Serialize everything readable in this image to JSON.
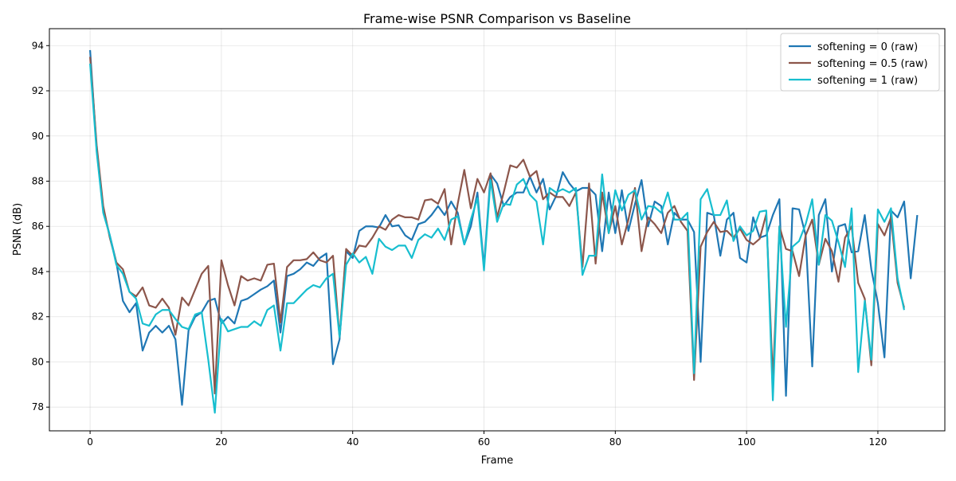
{
  "chart_data": {
    "type": "line",
    "title": "Frame-wise PSNR Comparison vs Baseline",
    "xlabel": "Frame",
    "ylabel": "PSNR (dB)",
    "xlim": [
      -6.2,
      130.2
    ],
    "ylim": [
      76.95,
      94.75
    ],
    "xticks": [
      0,
      20,
      40,
      60,
      80,
      100,
      120
    ],
    "yticks": [
      78,
      80,
      82,
      84,
      86,
      88,
      90,
      92,
      94
    ],
    "grid": true,
    "legend": "top-right",
    "series": [
      {
        "name": "softening = 0 (raw)",
        "color": "#1f77b4",
        "values": [
          93.8,
          89.4,
          86.7,
          85.6,
          84.4,
          82.7,
          82.2,
          82.6,
          80.5,
          81.3,
          81.6,
          81.3,
          81.6,
          81.0,
          78.1,
          81.4,
          82.0,
          82.2,
          82.7,
          82.8,
          81.7,
          82.0,
          81.7,
          82.7,
          82.8,
          83.0,
          83.2,
          83.35,
          83.6,
          81.3,
          83.8,
          83.9,
          84.1,
          84.4,
          84.25,
          84.6,
          84.8,
          79.9,
          81.0,
          84.9,
          84.6,
          85.8,
          86.0,
          86.0,
          85.95,
          86.5,
          86.0,
          86.05,
          85.6,
          85.4,
          86.1,
          86.2,
          86.5,
          86.9,
          86.5,
          87.1,
          86.6,
          85.2,
          86.0,
          87.5,
          84.2,
          88.3,
          87.9,
          86.9,
          87.3,
          87.5,
          87.5,
          88.2,
          87.5,
          88.1,
          86.75,
          87.35,
          88.4,
          87.9,
          87.55,
          87.7,
          87.7,
          87.4,
          84.9,
          87.5,
          85.7,
          87.6,
          85.8,
          87.0,
          88.05,
          86.0,
          87.1,
          86.9,
          85.2,
          86.6,
          86.3,
          86.3,
          85.75,
          80.0,
          86.6,
          86.5,
          84.7,
          86.3,
          86.6,
          84.6,
          84.4,
          86.4,
          85.5,
          85.6,
          86.5,
          87.2,
          78.5,
          86.8,
          86.75,
          85.6,
          79.8,
          86.5,
          87.2,
          84.0,
          86.0,
          86.1,
          84.85,
          84.9,
          86.5,
          84.1,
          82.6,
          80.2,
          86.7,
          86.4,
          87.1,
          83.7,
          86.5
        ]
      },
      {
        "name": "softening = 0.5 (raw)",
        "color": "#8c564b",
        "values": [
          93.5,
          89.6,
          86.9,
          85.5,
          84.4,
          84.1,
          83.1,
          82.9,
          83.3,
          82.5,
          82.4,
          82.8,
          82.4,
          81.2,
          82.85,
          82.5,
          83.2,
          83.9,
          84.25,
          78.6,
          84.5,
          83.4,
          82.5,
          83.8,
          83.6,
          83.7,
          83.6,
          84.3,
          84.35,
          81.75,
          84.2,
          84.5,
          84.5,
          84.55,
          84.85,
          84.5,
          84.4,
          84.7,
          81.1,
          85.0,
          84.7,
          85.15,
          85.1,
          85.5,
          86.0,
          85.85,
          86.3,
          86.5,
          86.4,
          86.4,
          86.3,
          87.15,
          87.2,
          87.0,
          87.65,
          85.2,
          87.0,
          88.5,
          86.8,
          88.1,
          87.5,
          88.35,
          86.4,
          87.5,
          88.7,
          88.6,
          88.95,
          88.2,
          88.45,
          87.2,
          87.5,
          87.3,
          87.3,
          86.9,
          87.5,
          84.2,
          87.9,
          84.35,
          87.5,
          85.7,
          86.9,
          85.2,
          86.3,
          87.7,
          84.9,
          86.4,
          86.1,
          85.7,
          86.6,
          86.9,
          86.2,
          85.8,
          79.2,
          85.1,
          85.75,
          86.2,
          85.75,
          85.8,
          85.5,
          85.9,
          85.4,
          85.2,
          85.45,
          86.55,
          79.2,
          86.0,
          85.0,
          84.9,
          83.8,
          85.6,
          86.3,
          84.3,
          85.45,
          84.9,
          83.55,
          85.5,
          86.0,
          83.5,
          82.8,
          79.85,
          86.1,
          85.6,
          86.4,
          83.5,
          82.4
        ]
      },
      {
        "name": "softening = 1 (raw)",
        "color": "#17becf",
        "values": [
          93.2,
          89.3,
          86.6,
          85.6,
          84.3,
          83.9,
          83.1,
          82.8,
          81.7,
          81.6,
          82.1,
          82.3,
          82.3,
          81.9,
          81.55,
          81.45,
          82.1,
          82.2,
          80.1,
          77.75,
          81.9,
          81.35,
          81.45,
          81.55,
          81.55,
          81.8,
          81.6,
          82.3,
          82.5,
          80.5,
          82.6,
          82.6,
          82.9,
          83.2,
          83.4,
          83.3,
          83.7,
          83.9,
          81.1,
          84.3,
          84.8,
          84.4,
          84.65,
          83.9,
          85.45,
          85.1,
          84.95,
          85.15,
          85.15,
          84.6,
          85.4,
          85.65,
          85.5,
          85.9,
          85.4,
          86.3,
          86.45,
          85.2,
          86.3,
          87.25,
          84.05,
          88.05,
          86.2,
          87.0,
          86.95,
          87.85,
          88.1,
          87.4,
          87.1,
          85.2,
          87.7,
          87.5,
          87.65,
          87.5,
          87.7,
          83.85,
          84.7,
          84.7,
          88.3,
          85.7,
          87.6,
          86.7,
          87.4,
          87.6,
          86.3,
          86.9,
          86.85,
          86.6,
          87.5,
          86.3,
          86.3,
          86.6,
          79.5,
          87.2,
          87.65,
          86.5,
          86.5,
          87.15,
          85.35,
          86.0,
          85.6,
          85.8,
          86.65,
          86.7,
          78.3,
          86.0,
          81.55,
          85.1,
          85.35,
          86.1,
          87.2,
          84.3,
          86.5,
          86.25,
          85.3,
          84.2,
          86.8,
          79.55,
          82.7,
          80.1,
          86.75,
          86.2,
          86.8,
          83.7,
          82.3
        ]
      }
    ]
  }
}
